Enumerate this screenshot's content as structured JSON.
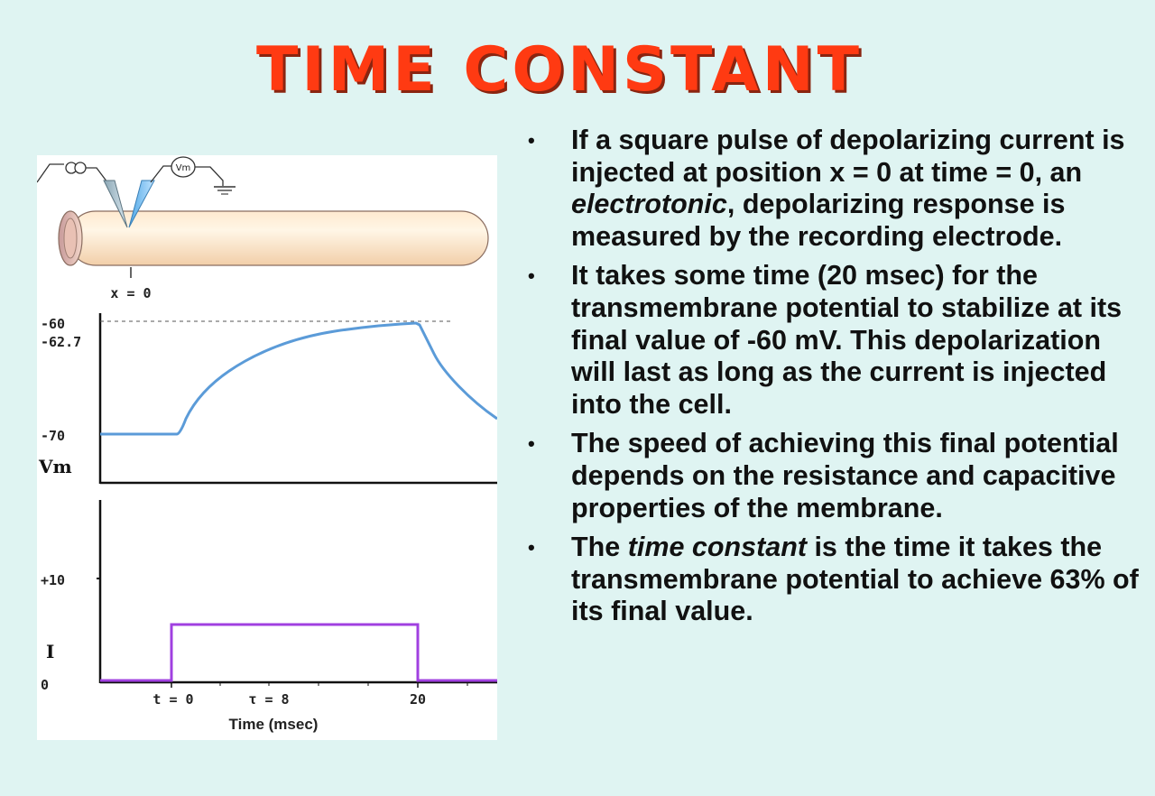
{
  "title": "TIME CONSTANT",
  "figure": {
    "position_label": "x = 0",
    "meter_label": "Vm",
    "vm_axis": {
      "label": "Vm",
      "ticks": [
        "-60",
        "-62.7",
        "-70"
      ]
    },
    "current_axis": {
      "label": "I",
      "ticks": [
        "+10",
        "0"
      ]
    },
    "time_axis": {
      "title": "Time (msec)",
      "ticks": [
        "t = 0",
        "τ = 8",
        "20"
      ]
    },
    "colors": {
      "vm_trace": "#5b9bd8",
      "current_trace": "#a040e0",
      "title": "#ff3a12"
    }
  },
  "bullets": [
    {
      "parts": [
        {
          "text": "If a square pulse of depolarizing current is injected at position x = 0 at time = 0, an ",
          "italic": false
        },
        {
          "text": "electrotonic",
          "italic": true
        },
        {
          "text": ", depolarizing response is measured by the recording electrode.",
          "italic": false
        }
      ]
    },
    {
      "parts": [
        {
          "text": "It takes some time (20 msec) for the transmembrane potential to stabilize at its final value of -60 mV. This depolarization will last as long as the current is injected into the cell.",
          "italic": false
        }
      ]
    },
    {
      "parts": [
        {
          "text": "The speed of achieving this final potential depends on the resistance and capacitive properties of the membrane.",
          "italic": false
        }
      ]
    },
    {
      "parts": [
        {
          "text": "The ",
          "italic": false
        },
        {
          "text": "time constant",
          "italic": true
        },
        {
          "text": " is the time it takes the transmembrane potential to achieve 63% of its final value.",
          "italic": false
        }
      ]
    }
  ]
}
